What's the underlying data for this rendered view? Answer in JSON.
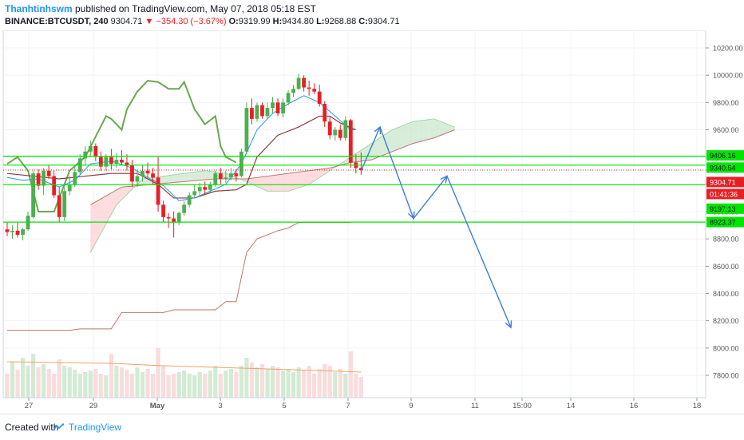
{
  "header": {
    "author": "Thanhtinhswm",
    "published": " published on TradingView.com, May 07, 2018 05:18 EST",
    "symbol": "BINANCE:BTCUSDT, 240",
    "last": "9304.71",
    "change": "−354.30 (−3.67%)",
    "o_label": "O:",
    "o_val": "9319.99",
    "h_label": "H:",
    "h_val": "9434.80",
    "l_label": "L:",
    "l_val": "9268.88",
    "c_label": "C:",
    "c_val": "9304.71"
  },
  "footer": {
    "created_with": "Created with",
    "brand": "TradingView"
  },
  "colors": {
    "up": "#4caf50",
    "down": "#e91e24",
    "green_line": "#00e600",
    "red_dotted": "#e91e24",
    "arrow": "#3d7fd1",
    "cloud_green": "#c8e6c9",
    "cloud_red": "#ffcdd2",
    "tenkan": "#2196f3",
    "kijun": "#8d3a3a",
    "chikou": "#6aa84f",
    "lagging_thin": "#c0766a"
  },
  "chart_data": {
    "type": "candlestick",
    "symbol": "BINANCE:BTCUSDT",
    "interval": "240",
    "ylim": [
      7600,
      10300
    ],
    "y_ticks": [
      "10200.00",
      "10000.00",
      "9800.00",
      "9600.00",
      "9400.00",
      "9200.00",
      "9000.00",
      "8800.00",
      "8600.00",
      "8400.00",
      "8200.00",
      "8000.00",
      "7800.00"
    ],
    "x_ticks": [
      "27",
      "29",
      "May",
      "3",
      "5",
      "7",
      "9",
      "11",
      "15:00",
      "14",
      "16",
      "18"
    ],
    "price_labels": [
      {
        "text": "9406.16",
        "value": 9406.16,
        "color": "#00e600"
      },
      {
        "text": "9340.54",
        "value": 9340.54,
        "color": "#00e600"
      },
      {
        "text": "9304.71",
        "value": 9304.71,
        "color": "#e91e24"
      },
      {
        "text": "01:41:36",
        "value": 9240,
        "color": "#e91e24"
      },
      {
        "text": "9197.13",
        "value": 9197.13,
        "color": "#00e600"
      },
      {
        "text": "8923.37",
        "value": 8923.37,
        "color": "#00e600"
      }
    ],
    "horizontal_levels": [
      9406.16,
      9340.54,
      9197.13,
      8923.37
    ],
    "last_price_line": 9304.71,
    "candles": [
      {
        "o": 8870,
        "h": 8920,
        "l": 8820,
        "c": 8850
      },
      {
        "o": 8850,
        "h": 8900,
        "l": 8800,
        "c": 8860
      },
      {
        "o": 8860,
        "h": 8920,
        "l": 8810,
        "c": 8830
      },
      {
        "o": 8830,
        "h": 8880,
        "l": 8790,
        "c": 8870
      },
      {
        "o": 8870,
        "h": 9000,
        "l": 8860,
        "c": 8970
      },
      {
        "o": 8960,
        "h": 9300,
        "l": 8950,
        "c": 9280
      },
      {
        "o": 9280,
        "h": 9310,
        "l": 9160,
        "c": 9190
      },
      {
        "o": 9190,
        "h": 9320,
        "l": 9120,
        "c": 9300
      },
      {
        "o": 9300,
        "h": 9340,
        "l": 9240,
        "c": 9260
      },
      {
        "o": 9260,
        "h": 9300,
        "l": 9100,
        "c": 9120
      },
      {
        "o": 9120,
        "h": 9180,
        "l": 8920,
        "c": 8960
      },
      {
        "o": 8960,
        "h": 9180,
        "l": 8930,
        "c": 9150
      },
      {
        "o": 9150,
        "h": 9260,
        "l": 9120,
        "c": 9200
      },
      {
        "o": 9200,
        "h": 9330,
        "l": 9180,
        "c": 9290
      },
      {
        "o": 9290,
        "h": 9420,
        "l": 9270,
        "c": 9390
      },
      {
        "o": 9390,
        "h": 9480,
        "l": 9340,
        "c": 9440
      },
      {
        "o": 9440,
        "h": 9520,
        "l": 9400,
        "c": 9480
      },
      {
        "o": 9480,
        "h": 9500,
        "l": 9370,
        "c": 9400
      },
      {
        "o": 9400,
        "h": 9440,
        "l": 9300,
        "c": 9330
      },
      {
        "o": 9330,
        "h": 9420,
        "l": 9300,
        "c": 9400
      },
      {
        "o": 9400,
        "h": 9460,
        "l": 9310,
        "c": 9350
      },
      {
        "o": 9350,
        "h": 9430,
        "l": 9320,
        "c": 9380
      },
      {
        "o": 9380,
        "h": 9450,
        "l": 9340,
        "c": 9360
      },
      {
        "o": 9360,
        "h": 9420,
        "l": 9300,
        "c": 9340
      },
      {
        "o": 9340,
        "h": 9380,
        "l": 9180,
        "c": 9220
      },
      {
        "o": 9220,
        "h": 9300,
        "l": 9180,
        "c": 9260
      },
      {
        "o": 9260,
        "h": 9340,
        "l": 9220,
        "c": 9300
      },
      {
        "o": 9300,
        "h": 9360,
        "l": 9250,
        "c": 9280
      },
      {
        "o": 9280,
        "h": 9320,
        "l": 9200,
        "c": 9250
      },
      {
        "o": 9250,
        "h": 9400,
        "l": 9000,
        "c": 9050
      },
      {
        "o": 9050,
        "h": 9080,
        "l": 8920,
        "c": 8960
      },
      {
        "o": 8960,
        "h": 8990,
        "l": 8880,
        "c": 8950
      },
      {
        "o": 8950,
        "h": 9000,
        "l": 8810,
        "c": 8920
      },
      {
        "o": 8920,
        "h": 9000,
        "l": 8900,
        "c": 8990
      },
      {
        "o": 8990,
        "h": 9080,
        "l": 8970,
        "c": 9050
      },
      {
        "o": 9050,
        "h": 9140,
        "l": 9030,
        "c": 9120
      },
      {
        "o": 9120,
        "h": 9200,
        "l": 9100,
        "c": 9150
      },
      {
        "o": 9150,
        "h": 9210,
        "l": 9110,
        "c": 9180
      },
      {
        "o": 9180,
        "h": 9220,
        "l": 9120,
        "c": 9160
      },
      {
        "o": 9160,
        "h": 9220,
        "l": 9140,
        "c": 9200
      },
      {
        "o": 9200,
        "h": 9300,
        "l": 9180,
        "c": 9280
      },
      {
        "o": 9280,
        "h": 9320,
        "l": 9200,
        "c": 9240
      },
      {
        "o": 9240,
        "h": 9300,
        "l": 9210,
        "c": 9250
      },
      {
        "o": 9250,
        "h": 9320,
        "l": 9230,
        "c": 9280
      },
      {
        "o": 9280,
        "h": 9310,
        "l": 9220,
        "c": 9260
      },
      {
        "o": 9260,
        "h": 9460,
        "l": 9250,
        "c": 9440
      },
      {
        "o": 9440,
        "h": 9800,
        "l": 9420,
        "c": 9760
      },
      {
        "o": 9760,
        "h": 9830,
        "l": 9640,
        "c": 9680
      },
      {
        "o": 9680,
        "h": 9800,
        "l": 9660,
        "c": 9780
      },
      {
        "o": 9780,
        "h": 9800,
        "l": 9680,
        "c": 9700
      },
      {
        "o": 9700,
        "h": 9800,
        "l": 9680,
        "c": 9760
      },
      {
        "o": 9760,
        "h": 9840,
        "l": 9720,
        "c": 9800
      },
      {
        "o": 9800,
        "h": 9830,
        "l": 9700,
        "c": 9720
      },
      {
        "o": 9720,
        "h": 9830,
        "l": 9690,
        "c": 9800
      },
      {
        "o": 9800,
        "h": 9890,
        "l": 9780,
        "c": 9870
      },
      {
        "o": 9870,
        "h": 9930,
        "l": 9840,
        "c": 9900
      },
      {
        "o": 9900,
        "h": 10010,
        "l": 9890,
        "c": 9980
      },
      {
        "o": 9980,
        "h": 10000,
        "l": 9880,
        "c": 9910
      },
      {
        "o": 9910,
        "h": 9960,
        "l": 9850,
        "c": 9900
      },
      {
        "o": 9900,
        "h": 9940,
        "l": 9860,
        "c": 9880
      },
      {
        "o": 9880,
        "h": 9930,
        "l": 9770,
        "c": 9790
      },
      {
        "o": 9790,
        "h": 9810,
        "l": 9620,
        "c": 9660
      },
      {
        "o": 9660,
        "h": 9700,
        "l": 9530,
        "c": 9560
      },
      {
        "o": 9560,
        "h": 9620,
        "l": 9520,
        "c": 9600
      },
      {
        "o": 9600,
        "h": 9640,
        "l": 9520,
        "c": 9540
      },
      {
        "o": 9540,
        "h": 9700,
        "l": 9520,
        "c": 9670
      },
      {
        "o": 9670,
        "h": 9680,
        "l": 9320,
        "c": 9360
      },
      {
        "o": 9360,
        "h": 9420,
        "l": 9280,
        "c": 9319.99
      },
      {
        "o": 9319.99,
        "h": 9434.8,
        "l": 9268.88,
        "c": 9304.71
      }
    ],
    "tenkan": [
      [
        0,
        9250
      ],
      [
        3,
        9230
      ],
      [
        6,
        9240
      ],
      [
        10,
        9180
      ],
      [
        13,
        9230
      ],
      [
        16,
        9350
      ],
      [
        20,
        9370
      ],
      [
        24,
        9320
      ],
      [
        27,
        9250
      ],
      [
        30,
        9190
      ],
      [
        33,
        9080
      ],
      [
        36,
        9100
      ],
      [
        39,
        9150
      ],
      [
        42,
        9200
      ],
      [
        45,
        9350
      ],
      [
        48,
        9600
      ],
      [
        51,
        9720
      ],
      [
        54,
        9790
      ],
      [
        57,
        9850
      ],
      [
        60,
        9800
      ],
      [
        63,
        9700
      ],
      [
        66,
        9600
      ],
      [
        67,
        9600
      ]
    ],
    "kijun": [
      [
        0,
        9280
      ],
      [
        5,
        9260
      ],
      [
        10,
        9240
      ],
      [
        15,
        9260
      ],
      [
        20,
        9280
      ],
      [
        25,
        9280
      ],
      [
        29,
        9200
      ],
      [
        32,
        9100
      ],
      [
        36,
        9100
      ],
      [
        40,
        9150
      ],
      [
        44,
        9160
      ],
      [
        46,
        9200
      ],
      [
        48,
        9400
      ],
      [
        52,
        9560
      ],
      [
        56,
        9620
      ],
      [
        60,
        9700
      ],
      [
        62,
        9700
      ],
      [
        64,
        9650
      ],
      [
        67,
        9600
      ]
    ],
    "chikou": [
      [
        0,
        9350
      ],
      [
        2,
        9400
      ],
      [
        4,
        9300
      ],
      [
        6,
        9000
      ],
      [
        9,
        9000
      ],
      [
        12,
        9300
      ],
      [
        15,
        9400
      ],
      [
        17,
        9550
      ],
      [
        19,
        9700
      ],
      [
        20,
        9680
      ],
      [
        22,
        9600
      ],
      [
        23,
        9750
      ],
      [
        25,
        9880
      ],
      [
        27,
        9960
      ],
      [
        29,
        9950
      ],
      [
        31,
        9900
      ],
      [
        33,
        9900
      ],
      [
        34,
        9950
      ],
      [
        36,
        9750
      ],
      [
        38,
        9640
      ],
      [
        40,
        9700
      ],
      [
        41,
        9480
      ],
      [
        42,
        9400
      ],
      [
        44,
        9360
      ]
    ],
    "senkou_a": [
      [
        0,
        8700
      ],
      [
        5,
        9050
      ],
      [
        10,
        9240
      ],
      [
        14,
        9260
      ],
      [
        18,
        9280
      ],
      [
        22,
        9300
      ],
      [
        26,
        9280
      ],
      [
        30,
        9220
      ],
      [
        34,
        9150
      ],
      [
        38,
        9150
      ],
      [
        42,
        9200
      ],
      [
        46,
        9300
      ],
      [
        50,
        9400
      ],
      [
        54,
        9500
      ],
      [
        58,
        9600
      ],
      [
        62,
        9660
      ],
      [
        66,
        9680
      ],
      [
        70,
        9620
      ]
    ],
    "senkou_b": [
      [
        0,
        9050
      ],
      [
        6,
        9180
      ],
      [
        12,
        9200
      ],
      [
        18,
        9220
      ],
      [
        24,
        9240
      ],
      [
        30,
        9240
      ],
      [
        34,
        9260
      ],
      [
        38,
        9280
      ],
      [
        42,
        9300
      ],
      [
        46,
        9320
      ],
      [
        50,
        9360
      ],
      [
        54,
        9380
      ],
      [
        58,
        9440
      ],
      [
        62,
        9500
      ],
      [
        66,
        9540
      ],
      [
        70,
        9600
      ]
    ],
    "lower_baseline": [
      [
        0,
        8130
      ],
      [
        12,
        8130
      ],
      [
        14,
        8140
      ],
      [
        20,
        8140
      ],
      [
        22,
        8260
      ],
      [
        30,
        8260
      ],
      [
        32,
        8280
      ],
      [
        40,
        8280
      ],
      [
        42,
        8340
      ],
      [
        44,
        8340
      ],
      [
        46,
        8700
      ],
      [
        48,
        8800
      ],
      [
        52,
        8860
      ],
      [
        54,
        8880
      ],
      [
        56,
        8920
      ],
      [
        62,
        8920
      ],
      [
        64,
        8920
      ],
      [
        66,
        8920
      ]
    ],
    "volume": [
      30,
      45,
      35,
      50,
      40,
      55,
      38,
      42,
      36,
      30,
      48,
      40,
      38,
      35,
      30,
      32,
      34,
      36,
      30,
      28,
      55,
      40,
      38,
      35,
      30,
      38,
      32,
      36,
      30,
      62,
      40,
      28,
      30,
      32,
      34,
      30,
      28,
      32,
      30,
      34,
      40,
      30,
      34,
      36,
      32,
      40,
      50,
      44,
      38,
      42,
      36,
      40,
      38,
      34,
      36,
      32,
      38,
      34,
      40,
      30,
      36,
      42,
      40,
      32,
      36,
      30,
      58,
      30,
      26
    ],
    "volume_ma": [
      [
        0,
        45
      ],
      [
        10,
        44
      ],
      [
        20,
        43
      ],
      [
        30,
        40
      ],
      [
        40,
        38
      ],
      [
        50,
        36
      ],
      [
        60,
        34
      ],
      [
        68,
        32
      ]
    ],
    "forecast_arrows": [
      {
        "from": [
          9300,
          0
        ],
        "to": [
          9620,
          1
        ]
      },
      {
        "path": [
          [
            9620,
            0
          ],
          [
            8950,
            1
          ],
          [
            9260,
            2
          ],
          [
            8150,
            3
          ]
        ]
      }
    ]
  }
}
